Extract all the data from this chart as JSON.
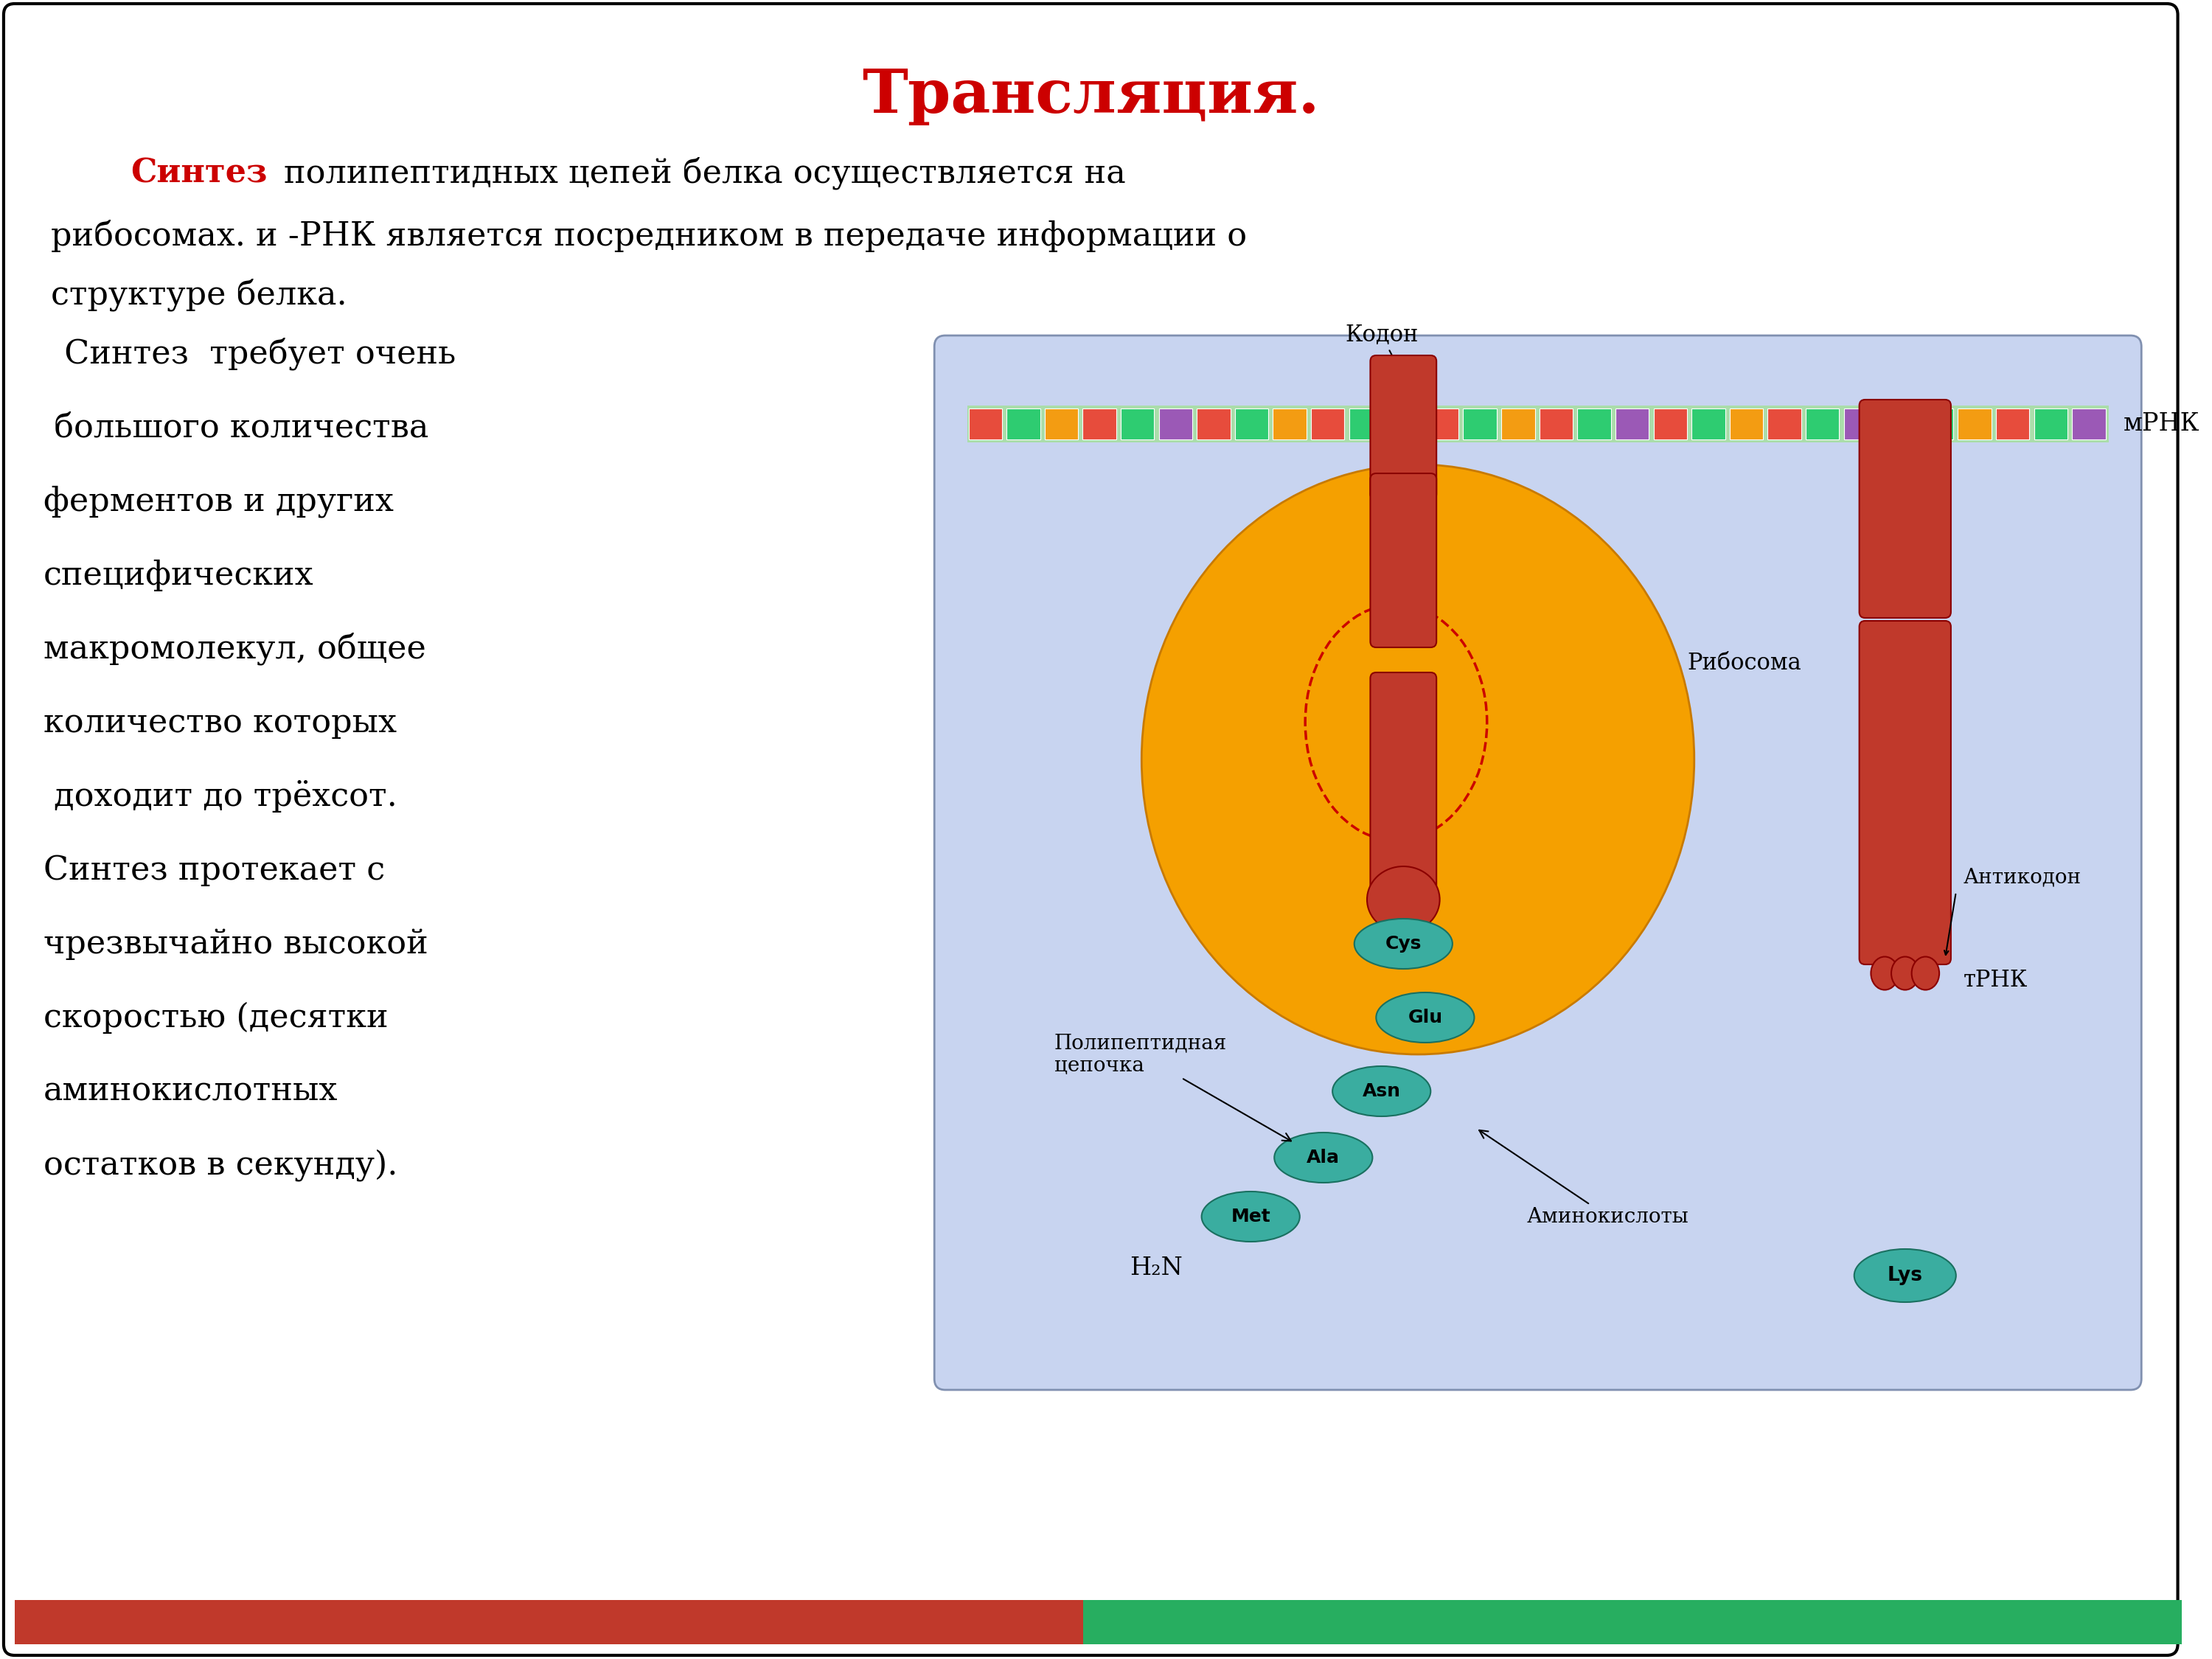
{
  "title": "Трансляция.",
  "title_color": "#cc0000",
  "title_fontsize": 60,
  "bg_color": "#ffffff",
  "border_color": "#000000",
  "paragraph1_red": "Синтез",
  "text_fontsize": 32,
  "diagram_bg": "#c8d4f0",
  "ribosome_color": "#f5a000",
  "polypeptide_color": "#c0392b",
  "amino_color": "#3aada0",
  "amino_edge": "#1a7060",
  "label_kodon": "Кодон",
  "label_mrna": "мРНК",
  "label_ribosome": "Рибосома",
  "label_antikodon": "Антикодон",
  "label_trna": "тРНК",
  "label_polypeptide": "Полипептидная\nцепочка",
  "label_amino": "Аминокислоты",
  "label_h2n": "H₂N",
  "bottom_bar_color1": "#c0392b",
  "bottom_bar_color2": "#27ae60",
  "codon_colors": [
    "#e74c3c",
    "#2ecc71",
    "#f39c12",
    "#e74c3c",
    "#2ecc71",
    "#9b59b6",
    "#e74c3c",
    "#2ecc71",
    "#f39c12",
    "#e74c3c",
    "#2ecc71",
    "#9b59b6",
    "#e74c3c",
    "#2ecc71",
    "#f39c12",
    "#e74c3c",
    "#2ecc71",
    "#9b59b6",
    "#e74c3c",
    "#2ecc71",
    "#f39c12",
    "#e74c3c",
    "#2ecc71",
    "#9b59b6",
    "#e74c3c",
    "#2ecc71",
    "#f39c12",
    "#e74c3c",
    "#2ecc71",
    "#9b59b6"
  ]
}
